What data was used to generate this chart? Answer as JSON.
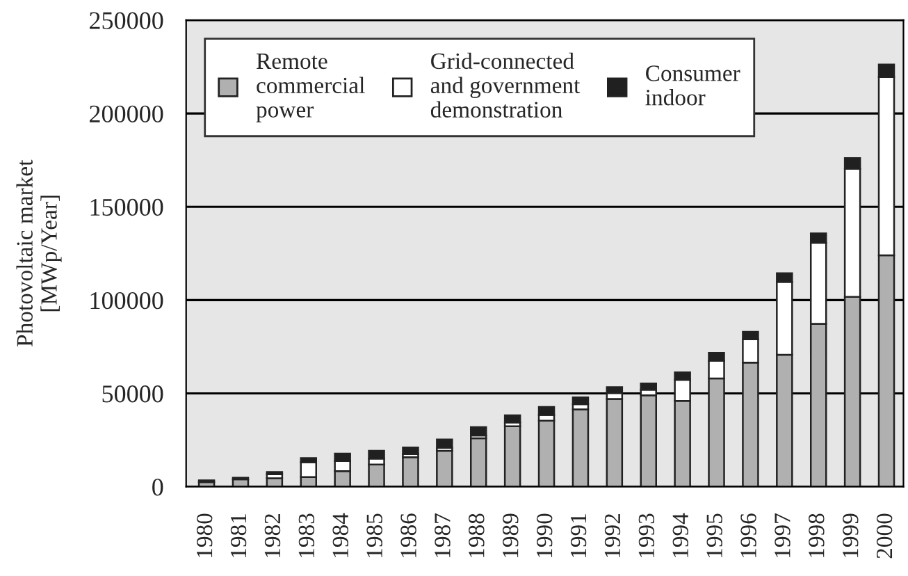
{
  "chart_data": {
    "type": "bar",
    "stacked": true,
    "ylabel": "Photovoltaic market\n[MWp/Year]",
    "categories": [
      "1980",
      "1981",
      "1982",
      "1983",
      "1984",
      "1985",
      "1986",
      "1987",
      "1988",
      "1989",
      "1990",
      "1991",
      "1992",
      "1993",
      "1994",
      "1995",
      "1996",
      "1997",
      "1998",
      "1999",
      "2000"
    ],
    "series": [
      {
        "name": "Remote\ncommercial\npower",
        "color": "#b0b0b0",
        "values": [
          2500,
          4000,
          4500,
          5200,
          8400,
          11900,
          15800,
          19300,
          26000,
          32400,
          35400,
          41400,
          47000,
          49000,
          46000,
          58000,
          66500,
          70700,
          87300,
          101700,
          124000
        ]
      },
      {
        "name": "Grid-connected\nand government\ndemonstration",
        "color": "#ffffff",
        "values": [
          null,
          null,
          2200,
          7900,
          5400,
          3200,
          1700,
          1500,
          1500,
          2000,
          3100,
          2800,
          3200,
          3000,
          11300,
          9500,
          12500,
          39000,
          43400,
          68700,
          95500
        ]
      },
      {
        "name": "Consumer\nindoor",
        "color": "#202020",
        "values": [
          900,
          800,
          1200,
          2200,
          4000,
          4200,
          3500,
          4500,
          4400,
          3900,
          4200,
          3700,
          3200,
          3300,
          4000,
          4200,
          4000,
          4700,
          5000,
          5700,
          6700
        ]
      }
    ],
    "ylim": [
      0,
      250000
    ],
    "yticks": [
      0,
      50000,
      100000,
      150000,
      200000,
      250000
    ],
    "grid": "y",
    "legend": "top left"
  }
}
